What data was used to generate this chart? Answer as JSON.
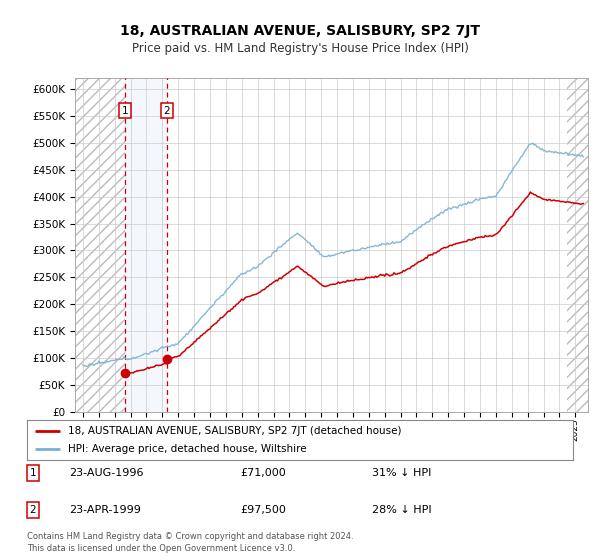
{
  "title": "18, AUSTRALIAN AVENUE, SALISBURY, SP2 7JT",
  "subtitle": "Price paid vs. HM Land Registry's House Price Index (HPI)",
  "ylabel_ticks": [
    "£0",
    "£50K",
    "£100K",
    "£150K",
    "£200K",
    "£250K",
    "£300K",
    "£350K",
    "£400K",
    "£450K",
    "£500K",
    "£550K",
    "£600K"
  ],
  "ylim": [
    0,
    620000
  ],
  "sale_year1": 1996.64,
  "sale_year2": 1999.29,
  "sale_price1": 71000,
  "sale_price2": 97500,
  "sale_labels": [
    "1",
    "2"
  ],
  "legend_red": "18, AUSTRALIAN AVENUE, SALISBURY, SP2 7JT (detached house)",
  "legend_blue": "HPI: Average price, detached house, Wiltshire",
  "table_data": [
    {
      "label": "1",
      "date": "23-AUG-1996",
      "price": "£71,000",
      "note": "31% ↓ HPI"
    },
    {
      "label": "2",
      "date": "23-APR-1999",
      "price": "£97,500",
      "note": "28% ↓ HPI"
    }
  ],
  "footer": "Contains HM Land Registry data © Crown copyright and database right 2024.\nThis data is licensed under the Open Government Licence v3.0.",
  "red_color": "#cc0000",
  "blue_color": "#7ab0d4",
  "vline_color": "#cc0000",
  "background_color": "#ffffff"
}
